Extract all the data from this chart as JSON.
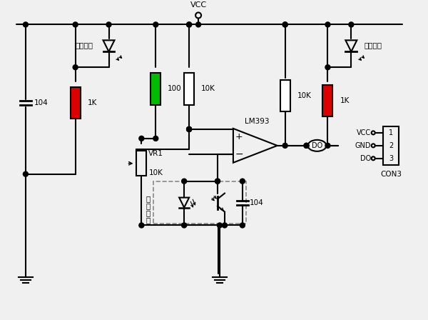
{
  "bg_color": "#f0f0f0",
  "line_color": "#000000",
  "line_width": 1.5,
  "component_labels": {
    "cap1": "104",
    "res1": "1K",
    "res2": "100",
    "res3": "10K",
    "res4": "10K",
    "res5": "1K",
    "vr1": "VR1",
    "vr1_val": "10K",
    "cap2": "104",
    "ic": "LM393",
    "do_label": "DO",
    "led1_label": "电源指示",
    "led2_label": "开关指示",
    "ir_label_1": "红",
    "ir_label_2": "外",
    "ir_label_3": "对",
    "ir_label_4": "管",
    "conn_label": "CON3",
    "vcc_conn": "VCC",
    "gnd_conn": "GND",
    "do_conn": "DO",
    "vcc_label": "VCC"
  },
  "colors": {
    "red_resistor": "#dd0000",
    "green_resistor": "#00bb00",
    "white_resistor": "#ffffff",
    "node_dot": "#000000",
    "wire": "#000000"
  },
  "layout": {
    "top_rail_y": 410,
    "fig_w": 6.0,
    "fig_h": 4.48,
    "dpi": 100,
    "xlim": [
      0,
      600
    ],
    "ylim": [
      0,
      448
    ]
  }
}
